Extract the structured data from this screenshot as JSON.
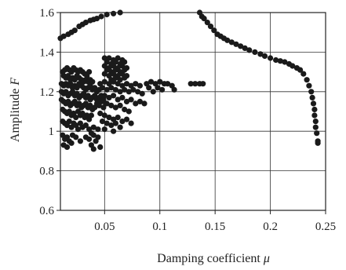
{
  "chart_data": {
    "type": "scatter",
    "title": "",
    "xlabel": "Damping coefficient",
    "xlabel_symbol": "μ",
    "ylabel": "Amplitude",
    "ylabel_symbol": "F",
    "xlim": [
      0.01,
      0.25
    ],
    "ylim": [
      0.6,
      1.6
    ],
    "x_ticks": [
      0.05,
      0.1,
      0.15,
      0.2,
      0.25
    ],
    "x_tick_labels": [
      "0.05",
      "0.1",
      "0.15",
      "0.2",
      "0.25"
    ],
    "y_ticks": [
      0.6,
      0.8,
      1.0,
      1.2,
      1.4,
      1.6
    ],
    "y_tick_labels": [
      "0.6",
      "0.8",
      "1",
      "1.2",
      "1.4",
      "1.6"
    ],
    "grid": true,
    "marker_color": "#1a1a1a",
    "series": [
      {
        "points": [
          [
            0.01,
            1.47
          ],
          [
            0.013,
            1.48
          ],
          [
            0.017,
            1.49
          ],
          [
            0.02,
            1.5
          ],
          [
            0.023,
            1.51
          ],
          [
            0.027,
            1.53
          ],
          [
            0.03,
            1.54
          ],
          [
            0.033,
            1.55
          ],
          [
            0.037,
            1.56
          ],
          [
            0.04,
            1.565
          ],
          [
            0.043,
            1.57
          ],
          [
            0.047,
            1.58
          ],
          [
            0.052,
            1.59
          ],
          [
            0.058,
            1.595
          ],
          [
            0.064,
            1.6
          ],
          [
            0.072,
            1.61
          ],
          [
            0.134,
            1.61
          ],
          [
            0.136,
            1.6
          ],
          [
            0.138,
            1.58
          ],
          [
            0.14,
            1.57
          ],
          [
            0.143,
            1.55
          ],
          [
            0.146,
            1.53
          ],
          [
            0.149,
            1.51
          ],
          [
            0.152,
            1.49
          ],
          [
            0.155,
            1.48
          ],
          [
            0.158,
            1.47
          ],
          [
            0.161,
            1.46
          ],
          [
            0.165,
            1.45
          ],
          [
            0.169,
            1.44
          ],
          [
            0.173,
            1.43
          ],
          [
            0.177,
            1.42
          ],
          [
            0.181,
            1.41
          ],
          [
            0.186,
            1.4
          ],
          [
            0.191,
            1.39
          ],
          [
            0.195,
            1.38
          ],
          [
            0.2,
            1.37
          ],
          [
            0.205,
            1.36
          ],
          [
            0.209,
            1.355
          ],
          [
            0.213,
            1.35
          ],
          [
            0.217,
            1.34
          ],
          [
            0.22,
            1.33
          ],
          [
            0.224,
            1.32
          ],
          [
            0.227,
            1.31
          ],
          [
            0.23,
            1.29
          ],
          [
            0.233,
            1.26
          ],
          [
            0.235,
            1.23
          ],
          [
            0.237,
            1.2
          ],
          [
            0.238,
            1.17
          ],
          [
            0.239,
            1.14
          ],
          [
            0.24,
            1.11
          ],
          [
            0.24,
            1.08
          ],
          [
            0.241,
            1.05
          ],
          [
            0.241,
            1.02
          ],
          [
            0.242,
            0.99
          ],
          [
            0.243,
            0.95
          ],
          [
            0.243,
            0.94
          ],
          [
            0.128,
            1.24
          ],
          [
            0.132,
            1.24
          ],
          [
            0.136,
            1.24
          ],
          [
            0.139,
            1.24
          ],
          [
            0.088,
            1.24
          ],
          [
            0.092,
            1.25
          ],
          [
            0.096,
            1.24
          ],
          [
            0.1,
            1.25
          ],
          [
            0.104,
            1.24
          ],
          [
            0.107,
            1.24
          ],
          [
            0.111,
            1.23
          ],
          [
            0.113,
            1.21
          ],
          [
            0.098,
            1.22
          ],
          [
            0.102,
            1.21
          ],
          [
            0.094,
            1.2
          ],
          [
            0.09,
            1.22
          ],
          [
            0.012,
            1.3
          ],
          [
            0.014,
            1.31
          ],
          [
            0.016,
            1.32
          ],
          [
            0.018,
            1.31
          ],
          [
            0.02,
            1.3
          ],
          [
            0.022,
            1.32
          ],
          [
            0.024,
            1.31
          ],
          [
            0.026,
            1.3
          ],
          [
            0.028,
            1.31
          ],
          [
            0.03,
            1.3
          ],
          [
            0.032,
            1.29
          ],
          [
            0.034,
            1.28
          ],
          [
            0.036,
            1.3
          ],
          [
            0.013,
            1.28
          ],
          [
            0.015,
            1.27
          ],
          [
            0.017,
            1.28
          ],
          [
            0.019,
            1.26
          ],
          [
            0.021,
            1.27
          ],
          [
            0.023,
            1.26
          ],
          [
            0.025,
            1.28
          ],
          [
            0.027,
            1.27
          ],
          [
            0.029,
            1.26
          ],
          [
            0.031,
            1.25
          ],
          [
            0.033,
            1.26
          ],
          [
            0.035,
            1.25
          ],
          [
            0.037,
            1.26
          ],
          [
            0.039,
            1.25
          ],
          [
            0.011,
            1.24
          ],
          [
            0.013,
            1.23
          ],
          [
            0.015,
            1.24
          ],
          [
            0.017,
            1.23
          ],
          [
            0.019,
            1.24
          ],
          [
            0.021,
            1.22
          ],
          [
            0.023,
            1.23
          ],
          [
            0.025,
            1.22
          ],
          [
            0.027,
            1.24
          ],
          [
            0.029,
            1.23
          ],
          [
            0.031,
            1.22
          ],
          [
            0.033,
            1.21
          ],
          [
            0.035,
            1.22
          ],
          [
            0.037,
            1.23
          ],
          [
            0.039,
            1.21
          ],
          [
            0.041,
            1.22
          ],
          [
            0.043,
            1.2
          ],
          [
            0.045,
            1.21
          ],
          [
            0.011,
            1.2
          ],
          [
            0.013,
            1.19
          ],
          [
            0.015,
            1.2
          ],
          [
            0.017,
            1.18
          ],
          [
            0.019,
            1.19
          ],
          [
            0.021,
            1.2
          ],
          [
            0.023,
            1.18
          ],
          [
            0.025,
            1.19
          ],
          [
            0.027,
            1.17
          ],
          [
            0.029,
            1.18
          ],
          [
            0.031,
            1.19
          ],
          [
            0.033,
            1.17
          ],
          [
            0.035,
            1.18
          ],
          [
            0.037,
            1.16
          ],
          [
            0.039,
            1.17
          ],
          [
            0.041,
            1.18
          ],
          [
            0.043,
            1.16
          ],
          [
            0.045,
            1.17
          ],
          [
            0.047,
            1.18
          ],
          [
            0.049,
            1.16
          ],
          [
            0.011,
            1.16
          ],
          [
            0.013,
            1.15
          ],
          [
            0.015,
            1.14
          ],
          [
            0.017,
            1.15
          ],
          [
            0.019,
            1.13
          ],
          [
            0.021,
            1.14
          ],
          [
            0.023,
            1.15
          ],
          [
            0.025,
            1.13
          ],
          [
            0.027,
            1.14
          ],
          [
            0.029,
            1.12
          ],
          [
            0.031,
            1.13
          ],
          [
            0.033,
            1.14
          ],
          [
            0.035,
            1.12
          ],
          [
            0.037,
            1.13
          ],
          [
            0.039,
            1.11
          ],
          [
            0.041,
            1.12
          ],
          [
            0.043,
            1.14
          ],
          [
            0.045,
            1.13
          ],
          [
            0.047,
            1.15
          ],
          [
            0.049,
            1.12
          ],
          [
            0.051,
            1.14
          ],
          [
            0.012,
            1.11
          ],
          [
            0.014,
            1.1
          ],
          [
            0.016,
            1.09
          ],
          [
            0.018,
            1.1
          ],
          [
            0.02,
            1.08
          ],
          [
            0.022,
            1.09
          ],
          [
            0.024,
            1.07
          ],
          [
            0.026,
            1.1
          ],
          [
            0.028,
            1.08
          ],
          [
            0.03,
            1.09
          ],
          [
            0.032,
            1.07
          ],
          [
            0.034,
            1.08
          ],
          [
            0.036,
            1.06
          ],
          [
            0.038,
            1.08
          ],
          [
            0.012,
            1.05
          ],
          [
            0.014,
            1.04
          ],
          [
            0.016,
            1.03
          ],
          [
            0.018,
            1.05
          ],
          [
            0.02,
            1.02
          ],
          [
            0.022,
            1.04
          ],
          [
            0.024,
            1.03
          ],
          [
            0.026,
            1.01
          ],
          [
            0.028,
            1.04
          ],
          [
            0.03,
            1.02
          ],
          [
            0.033,
            1.03
          ],
          [
            0.036,
            1.01
          ],
          [
            0.04,
            1.02
          ],
          [
            0.044,
            1.01
          ],
          [
            0.012,
            0.98
          ],
          [
            0.014,
            0.96
          ],
          [
            0.016,
            0.97
          ],
          [
            0.018,
            0.95
          ],
          [
            0.021,
            0.98
          ],
          [
            0.013,
            0.93
          ],
          [
            0.016,
            0.92
          ],
          [
            0.02,
            0.94
          ],
          [
            0.024,
            0.97
          ],
          [
            0.028,
            0.95
          ],
          [
            0.033,
            0.97
          ],
          [
            0.038,
            0.99
          ],
          [
            0.05,
            1.37
          ],
          [
            0.054,
            1.37
          ],
          [
            0.058,
            1.36
          ],
          [
            0.062,
            1.37
          ],
          [
            0.066,
            1.36
          ],
          [
            0.052,
            1.35
          ],
          [
            0.056,
            1.34
          ],
          [
            0.06,
            1.35
          ],
          [
            0.064,
            1.34
          ],
          [
            0.068,
            1.35
          ],
          [
            0.05,
            1.33
          ],
          [
            0.054,
            1.32
          ],
          [
            0.058,
            1.33
          ],
          [
            0.062,
            1.32
          ],
          [
            0.066,
            1.33
          ],
          [
            0.07,
            1.32
          ],
          [
            0.052,
            1.31
          ],
          [
            0.056,
            1.3
          ],
          [
            0.06,
            1.31
          ],
          [
            0.064,
            1.3
          ],
          [
            0.068,
            1.31
          ],
          [
            0.05,
            1.29
          ],
          [
            0.054,
            1.28
          ],
          [
            0.058,
            1.29
          ],
          [
            0.062,
            1.28
          ],
          [
            0.066,
            1.29
          ],
          [
            0.07,
            1.28
          ],
          [
            0.056,
            1.26
          ],
          [
            0.06,
            1.27
          ],
          [
            0.064,
            1.26
          ],
          [
            0.068,
            1.27
          ],
          [
            0.046,
            1.24
          ],
          [
            0.05,
            1.25
          ],
          [
            0.054,
            1.24
          ],
          [
            0.058,
            1.25
          ],
          [
            0.062,
            1.24
          ],
          [
            0.066,
            1.23
          ],
          [
            0.07,
            1.24
          ],
          [
            0.074,
            1.23
          ],
          [
            0.078,
            1.24
          ],
          [
            0.082,
            1.23
          ],
          [
            0.048,
            1.22
          ],
          [
            0.052,
            1.21
          ],
          [
            0.056,
            1.22
          ],
          [
            0.06,
            1.21
          ],
          [
            0.064,
            1.2
          ],
          [
            0.068,
            1.21
          ],
          [
            0.072,
            1.2
          ],
          [
            0.076,
            1.21
          ],
          [
            0.08,
            1.2
          ],
          [
            0.084,
            1.19
          ],
          [
            0.05,
            1.18
          ],
          [
            0.054,
            1.17
          ],
          [
            0.058,
            1.18
          ],
          [
            0.062,
            1.16
          ],
          [
            0.066,
            1.17
          ],
          [
            0.07,
            1.15
          ],
          [
            0.074,
            1.16
          ],
          [
            0.078,
            1.14
          ],
          [
            0.082,
            1.15
          ],
          [
            0.086,
            1.14
          ],
          [
            0.052,
            1.14
          ],
          [
            0.056,
            1.13
          ],
          [
            0.06,
            1.12
          ],
          [
            0.064,
            1.13
          ],
          [
            0.068,
            1.11
          ],
          [
            0.072,
            1.1
          ],
          [
            0.046,
            1.09
          ],
          [
            0.05,
            1.08
          ],
          [
            0.054,
            1.07
          ],
          [
            0.058,
            1.06
          ],
          [
            0.062,
            1.07
          ],
          [
            0.066,
            1.05
          ],
          [
            0.07,
            1.06
          ],
          [
            0.074,
            1.04
          ],
          [
            0.048,
            1.05
          ],
          [
            0.052,
            1.04
          ],
          [
            0.056,
            1.03
          ],
          [
            0.06,
            1.04
          ],
          [
            0.064,
            1.02
          ],
          [
            0.05,
            1.01
          ],
          [
            0.058,
            1.0
          ],
          [
            0.04,
            0.98
          ],
          [
            0.036,
            0.96
          ],
          [
            0.044,
            0.97
          ],
          [
            0.042,
            0.95
          ],
          [
            0.038,
            0.93
          ],
          [
            0.046,
            0.92
          ],
          [
            0.04,
            0.91
          ]
        ]
      }
    ]
  }
}
